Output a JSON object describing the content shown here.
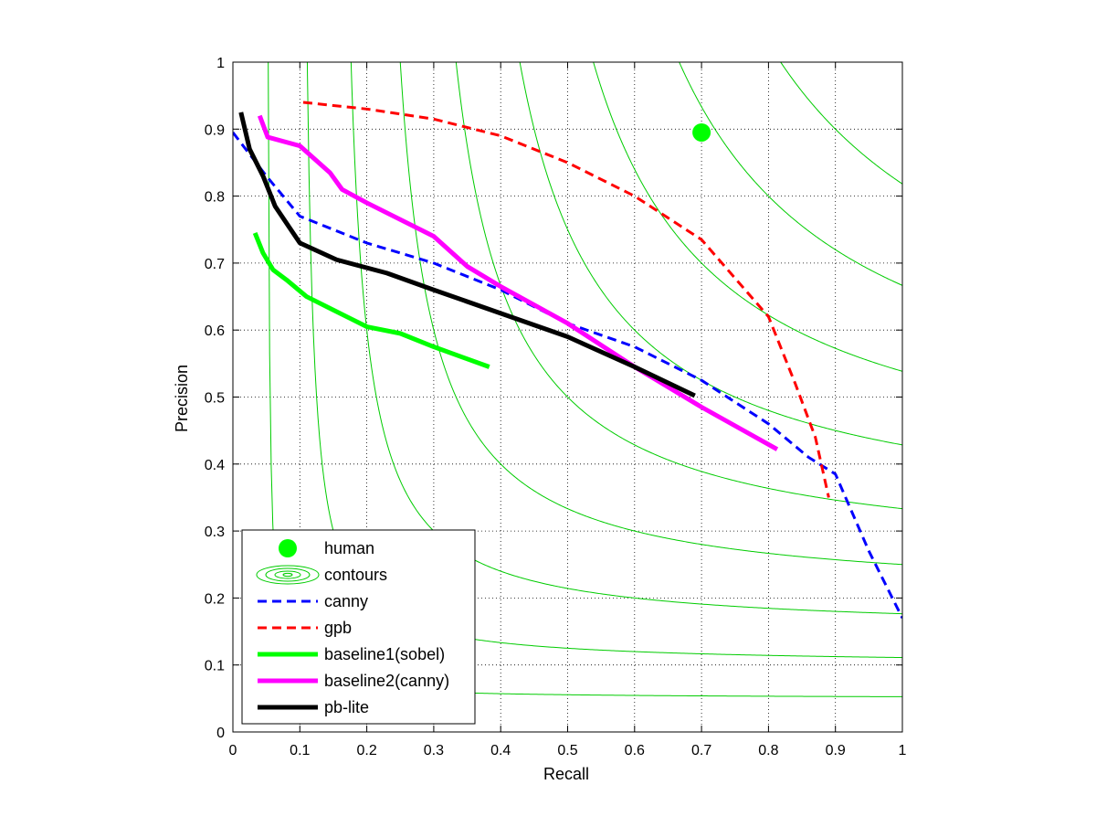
{
  "chart_data": {
    "type": "line",
    "title": "",
    "xlabel": "Recall",
    "ylabel": "Precision",
    "xlim": [
      0,
      1
    ],
    "ylim": [
      0,
      1
    ],
    "grid": true,
    "legend_position": "bottom-left",
    "x_ticks": [
      "0",
      "0.1",
      "0.2",
      "0.3",
      "0.4",
      "0.5",
      "0.6",
      "0.7",
      "0.8",
      "0.9",
      "1"
    ],
    "y_ticks": [
      "0",
      "0.1",
      "0.2",
      "0.3",
      "0.4",
      "0.5",
      "0.6",
      "0.7",
      "0.8",
      "0.9",
      "1"
    ],
    "contours": {
      "name": "contours",
      "color": "#00cc00",
      "f_levels": [
        0.1,
        0.2,
        0.3,
        0.4,
        0.5,
        0.6,
        0.7,
        0.8,
        0.9
      ]
    },
    "human": {
      "name": "human",
      "x": 0.7,
      "y": 0.895,
      "color": "#00ff00"
    },
    "series": [
      {
        "name": "canny",
        "color": "#0000ff",
        "style": "dashed",
        "width": 3,
        "points": [
          [
            0.0,
            0.895
          ],
          [
            0.05,
            0.83
          ],
          [
            0.1,
            0.77
          ],
          [
            0.2,
            0.73
          ],
          [
            0.3,
            0.7
          ],
          [
            0.4,
            0.66
          ],
          [
            0.5,
            0.61
          ],
          [
            0.6,
            0.575
          ],
          [
            0.7,
            0.525
          ],
          [
            0.8,
            0.46
          ],
          [
            0.86,
            0.41
          ],
          [
            0.9,
            0.385
          ],
          [
            0.95,
            0.27
          ],
          [
            1.0,
            0.17
          ]
        ]
      },
      {
        "name": "gpb",
        "color": "#ff0000",
        "style": "dashed",
        "width": 3,
        "points": [
          [
            0.105,
            0.94
          ],
          [
            0.2,
            0.93
          ],
          [
            0.3,
            0.915
          ],
          [
            0.4,
            0.89
          ],
          [
            0.5,
            0.85
          ],
          [
            0.6,
            0.8
          ],
          [
            0.7,
            0.735
          ],
          [
            0.8,
            0.62
          ],
          [
            0.84,
            0.52
          ],
          [
            0.87,
            0.44
          ],
          [
            0.89,
            0.35
          ]
        ]
      },
      {
        "name": "baseline1(sobel)",
        "color": "#00ff00",
        "style": "solid",
        "width": 5,
        "points": [
          [
            0.033,
            0.745
          ],
          [
            0.045,
            0.715
          ],
          [
            0.06,
            0.69
          ],
          [
            0.08,
            0.675
          ],
          [
            0.11,
            0.65
          ],
          [
            0.15,
            0.63
          ],
          [
            0.2,
            0.605
          ],
          [
            0.25,
            0.595
          ],
          [
            0.3,
            0.575
          ],
          [
            0.383,
            0.545
          ]
        ]
      },
      {
        "name": "baseline2(canny)",
        "color": "#ff00ff",
        "style": "solid",
        "width": 5,
        "points": [
          [
            0.04,
            0.92
          ],
          [
            0.052,
            0.888
          ],
          [
            0.1,
            0.875
          ],
          [
            0.145,
            0.835
          ],
          [
            0.163,
            0.81
          ],
          [
            0.2,
            0.79
          ],
          [
            0.3,
            0.74
          ],
          [
            0.35,
            0.695
          ],
          [
            0.4,
            0.665
          ],
          [
            0.5,
            0.61
          ],
          [
            0.6,
            0.545
          ],
          [
            0.7,
            0.485
          ],
          [
            0.813,
            0.422
          ]
        ]
      },
      {
        "name": "pb-lite",
        "color": "#000000",
        "style": "solid",
        "width": 5,
        "points": [
          [
            0.012,
            0.925
          ],
          [
            0.025,
            0.87
          ],
          [
            0.045,
            0.83
          ],
          [
            0.063,
            0.785
          ],
          [
            0.1,
            0.73
          ],
          [
            0.155,
            0.705
          ],
          [
            0.23,
            0.685
          ],
          [
            0.3,
            0.66
          ],
          [
            0.4,
            0.625
          ],
          [
            0.5,
            0.59
          ],
          [
            0.6,
            0.545
          ],
          [
            0.69,
            0.502
          ]
        ]
      }
    ]
  }
}
